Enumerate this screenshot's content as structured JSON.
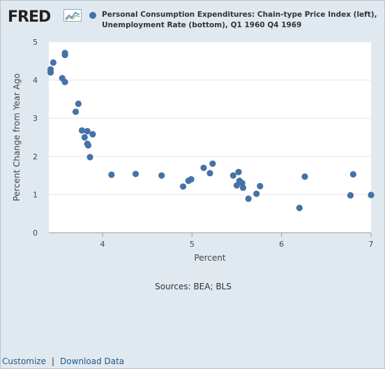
{
  "header": {
    "logo_text": "FRED",
    "legend_label": "Personal Consumption Expenditures: Chain-type Price Index (left), Unemployment Rate (bottom), Q1 1960 Q4 1969"
  },
  "colors": {
    "series": "#4572a7",
    "plot_bg": "#ffffff",
    "page_bg": "#e1e9f0"
  },
  "chart_data": {
    "type": "scatter",
    "xlabel": "Percent",
    "ylabel": "Percent Change from Year Ago",
    "xlim": [
      3.4,
      7.0
    ],
    "ylim": [
      0,
      5
    ],
    "x_ticks": [
      "4",
      "5",
      "6",
      "7"
    ],
    "y_ticks": [
      "0",
      "1",
      "2",
      "3",
      "4",
      "5"
    ],
    "grid": true,
    "series": [
      {
        "name": "Personal Consumption Expenditures: Chain-type Price Index (left), Unemployment Rate (bottom), Q1 1960 Q4 1969",
        "points": [
          [
            3.42,
            4.28
          ],
          [
            3.42,
            4.2
          ],
          [
            3.45,
            4.46
          ],
          [
            3.55,
            4.05
          ],
          [
            3.58,
            4.66
          ],
          [
            3.58,
            4.71
          ],
          [
            3.58,
            3.95
          ],
          [
            3.7,
            3.17
          ],
          [
            3.73,
            3.38
          ],
          [
            3.77,
            2.68
          ],
          [
            3.8,
            2.5
          ],
          [
            3.83,
            2.66
          ],
          [
            3.83,
            2.33
          ],
          [
            3.84,
            2.29
          ],
          [
            3.86,
            1.98
          ],
          [
            3.89,
            2.58
          ],
          [
            4.1,
            1.52
          ],
          [
            4.37,
            1.54
          ],
          [
            4.66,
            1.5
          ],
          [
            4.9,
            1.21
          ],
          [
            4.96,
            1.36
          ],
          [
            4.99,
            1.4
          ],
          [
            5.13,
            1.7
          ],
          [
            5.2,
            1.56
          ],
          [
            5.23,
            1.81
          ],
          [
            5.46,
            1.5
          ],
          [
            5.5,
            1.24
          ],
          [
            5.52,
            1.59
          ],
          [
            5.53,
            1.36
          ],
          [
            5.56,
            1.3
          ],
          [
            5.57,
            1.18
          ],
          [
            5.63,
            0.89
          ],
          [
            5.72,
            1.02
          ],
          [
            5.76,
            1.22
          ],
          [
            6.2,
            0.65
          ],
          [
            6.26,
            1.47
          ],
          [
            6.77,
            0.98
          ],
          [
            6.8,
            1.53
          ],
          [
            7.0,
            0.99
          ]
        ]
      }
    ]
  },
  "footer": {
    "source_text": "Sources: BEA; BLS",
    "customize_label": "Customize",
    "separator": "|",
    "download_label": "Download Data"
  }
}
